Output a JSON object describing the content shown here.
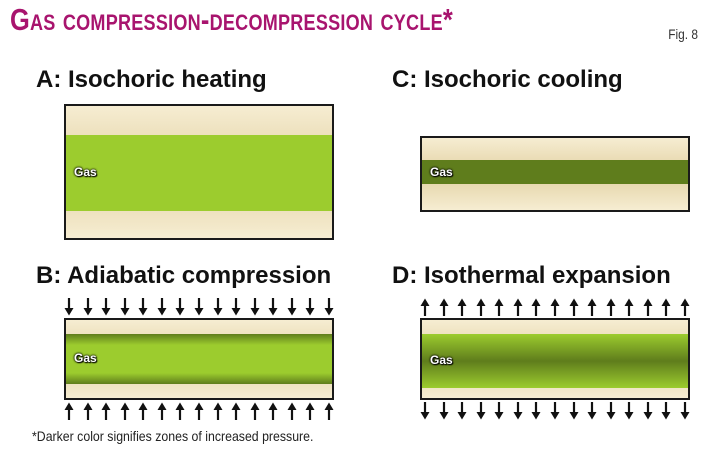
{
  "title": "Gas compression-decompression cycle*",
  "fig_label": "Fig. 8",
  "panels": {
    "a": {
      "title": "A: Isochoric heating",
      "gas_label": "Gas"
    },
    "b": {
      "title": "B: Adiabatic compression",
      "gas_label": "Gas"
    },
    "c": {
      "title": "C: Isochoric cooling",
      "gas_label": "Gas"
    },
    "d": {
      "title": "D: Isothermal expansion",
      "gas_label": "Gas"
    }
  },
  "footnote": "*Darker color signifies zones of increased pressure.",
  "colors": {
    "title": "#a8146e",
    "gas_bright": "#9ccc2e",
    "gas_dark": "#5f7d1c",
    "container_light": "#f6edd2",
    "container_tan": "#e2d1a3",
    "border": "#1a1a1a"
  }
}
